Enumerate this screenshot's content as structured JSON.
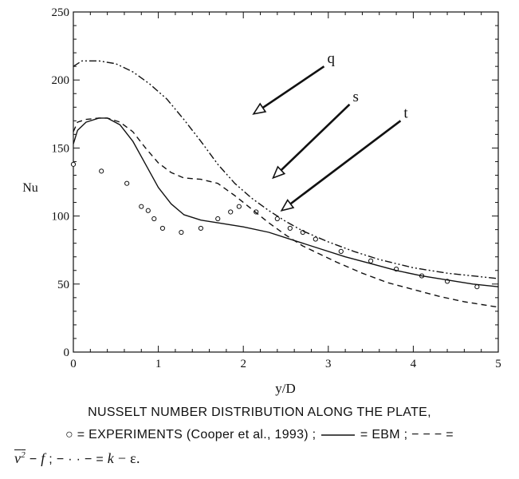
{
  "chart_data": {
    "type": "line",
    "xlabel": "y/D",
    "ylabel": "Nu",
    "xlim": [
      0,
      5
    ],
    "ylim": [
      0,
      250
    ],
    "xticks": [
      0,
      1,
      2,
      3,
      4,
      5
    ],
    "yticks": [
      0,
      50,
      100,
      150,
      200,
      250
    ],
    "grid": false,
    "series": [
      {
        "name": "EXPERIMENTS (Cooper et al., 1993)",
        "style": "open-circles",
        "points": [
          [
            0.0,
            138
          ],
          [
            0.33,
            133
          ],
          [
            0.63,
            124
          ],
          [
            0.8,
            107
          ],
          [
            0.88,
            104
          ],
          [
            0.95,
            98
          ],
          [
            1.05,
            91
          ],
          [
            1.27,
            88
          ],
          [
            1.5,
            91
          ],
          [
            1.7,
            98
          ],
          [
            1.85,
            103
          ],
          [
            1.95,
            107
          ],
          [
            2.15,
            103
          ],
          [
            2.4,
            98
          ],
          [
            2.55,
            91
          ],
          [
            2.7,
            88
          ],
          [
            2.85,
            83
          ],
          [
            3.15,
            74
          ],
          [
            3.5,
            67
          ],
          [
            3.8,
            61
          ],
          [
            4.1,
            56
          ],
          [
            4.4,
            52
          ],
          [
            4.75,
            48
          ]
        ]
      },
      {
        "name": "EBM",
        "style": "solid",
        "points": [
          [
            0.0,
            153
          ],
          [
            0.05,
            163
          ],
          [
            0.15,
            169
          ],
          [
            0.3,
            172
          ],
          [
            0.4,
            172
          ],
          [
            0.55,
            167
          ],
          [
            0.7,
            155
          ],
          [
            0.85,
            138
          ],
          [
            1.0,
            121
          ],
          [
            1.15,
            109
          ],
          [
            1.3,
            101
          ],
          [
            1.5,
            97
          ],
          [
            1.7,
            95
          ],
          [
            2.0,
            92
          ],
          [
            2.3,
            88
          ],
          [
            2.6,
            82
          ],
          [
            2.9,
            76
          ],
          [
            3.2,
            70
          ],
          [
            3.5,
            65
          ],
          [
            3.8,
            60
          ],
          [
            4.1,
            56
          ],
          [
            4.4,
            53
          ],
          [
            4.7,
            50
          ],
          [
            5.0,
            48
          ]
        ]
      },
      {
        "name": "v2-f",
        "style": "dashed",
        "points": [
          [
            0.0,
            162
          ],
          [
            0.05,
            169
          ],
          [
            0.15,
            171
          ],
          [
            0.3,
            172
          ],
          [
            0.4,
            172
          ],
          [
            0.55,
            169
          ],
          [
            0.7,
            162
          ],
          [
            0.85,
            150
          ],
          [
            1.0,
            139
          ],
          [
            1.15,
            132
          ],
          [
            1.3,
            128
          ],
          [
            1.5,
            127
          ],
          [
            1.7,
            124
          ],
          [
            1.9,
            115
          ],
          [
            2.1,
            105
          ],
          [
            2.3,
            95
          ],
          [
            2.5,
            86
          ],
          [
            2.7,
            78
          ],
          [
            2.9,
            72
          ],
          [
            3.1,
            66
          ],
          [
            3.4,
            58
          ],
          [
            3.7,
            51
          ],
          [
            4.0,
            46
          ],
          [
            4.3,
            41
          ],
          [
            4.6,
            37
          ],
          [
            5.0,
            33
          ]
        ]
      },
      {
        "name": "k-ε",
        "style": "dash-dot-dot",
        "points": [
          [
            0.0,
            210
          ],
          [
            0.1,
            214
          ],
          [
            0.3,
            214
          ],
          [
            0.5,
            212
          ],
          [
            0.7,
            206
          ],
          [
            0.9,
            197
          ],
          [
            1.1,
            186
          ],
          [
            1.3,
            171
          ],
          [
            1.5,
            155
          ],
          [
            1.7,
            138
          ],
          [
            1.9,
            124
          ],
          [
            2.1,
            113
          ],
          [
            2.3,
            104
          ],
          [
            2.5,
            96
          ],
          [
            2.7,
            89
          ],
          [
            3.0,
            81
          ],
          [
            3.3,
            74
          ],
          [
            3.6,
            68
          ],
          [
            4.0,
            62
          ],
          [
            4.4,
            58
          ],
          [
            4.7,
            56
          ],
          [
            5.0,
            54
          ]
        ]
      }
    ],
    "annotations": [
      {
        "text": "q",
        "arrow_from": [
          2.95,
          210
        ],
        "arrow_to": [
          2.12,
          175
        ]
      },
      {
        "text": "s",
        "arrow_from": [
          3.25,
          182
        ],
        "arrow_to": [
          2.35,
          128
        ]
      },
      {
        "text": "t",
        "arrow_from": [
          3.85,
          170
        ],
        "arrow_to": [
          2.45,
          104
        ]
      }
    ]
  },
  "caption": {
    "line1": "NUSSELT NUMBER DISTRIBUTION ALONG THE PLATE,",
    "line2_circle": "○",
    "line2_a": " = EXPERIMENTS (Cooper et al., 1993) ;",
    "line2_b": " = EBM ; ",
    "line2_dash": "− − −",
    "line2_c": " =",
    "line3_v2": "v",
    "line3_sq": "2",
    "line3_a": " − ",
    "line3_f": "f",
    "line3_b": " ; ",
    "line3_dashdot": "− · · −",
    "line3_c": " = ",
    "line3_k": "k",
    "line3_d": " − ε."
  }
}
